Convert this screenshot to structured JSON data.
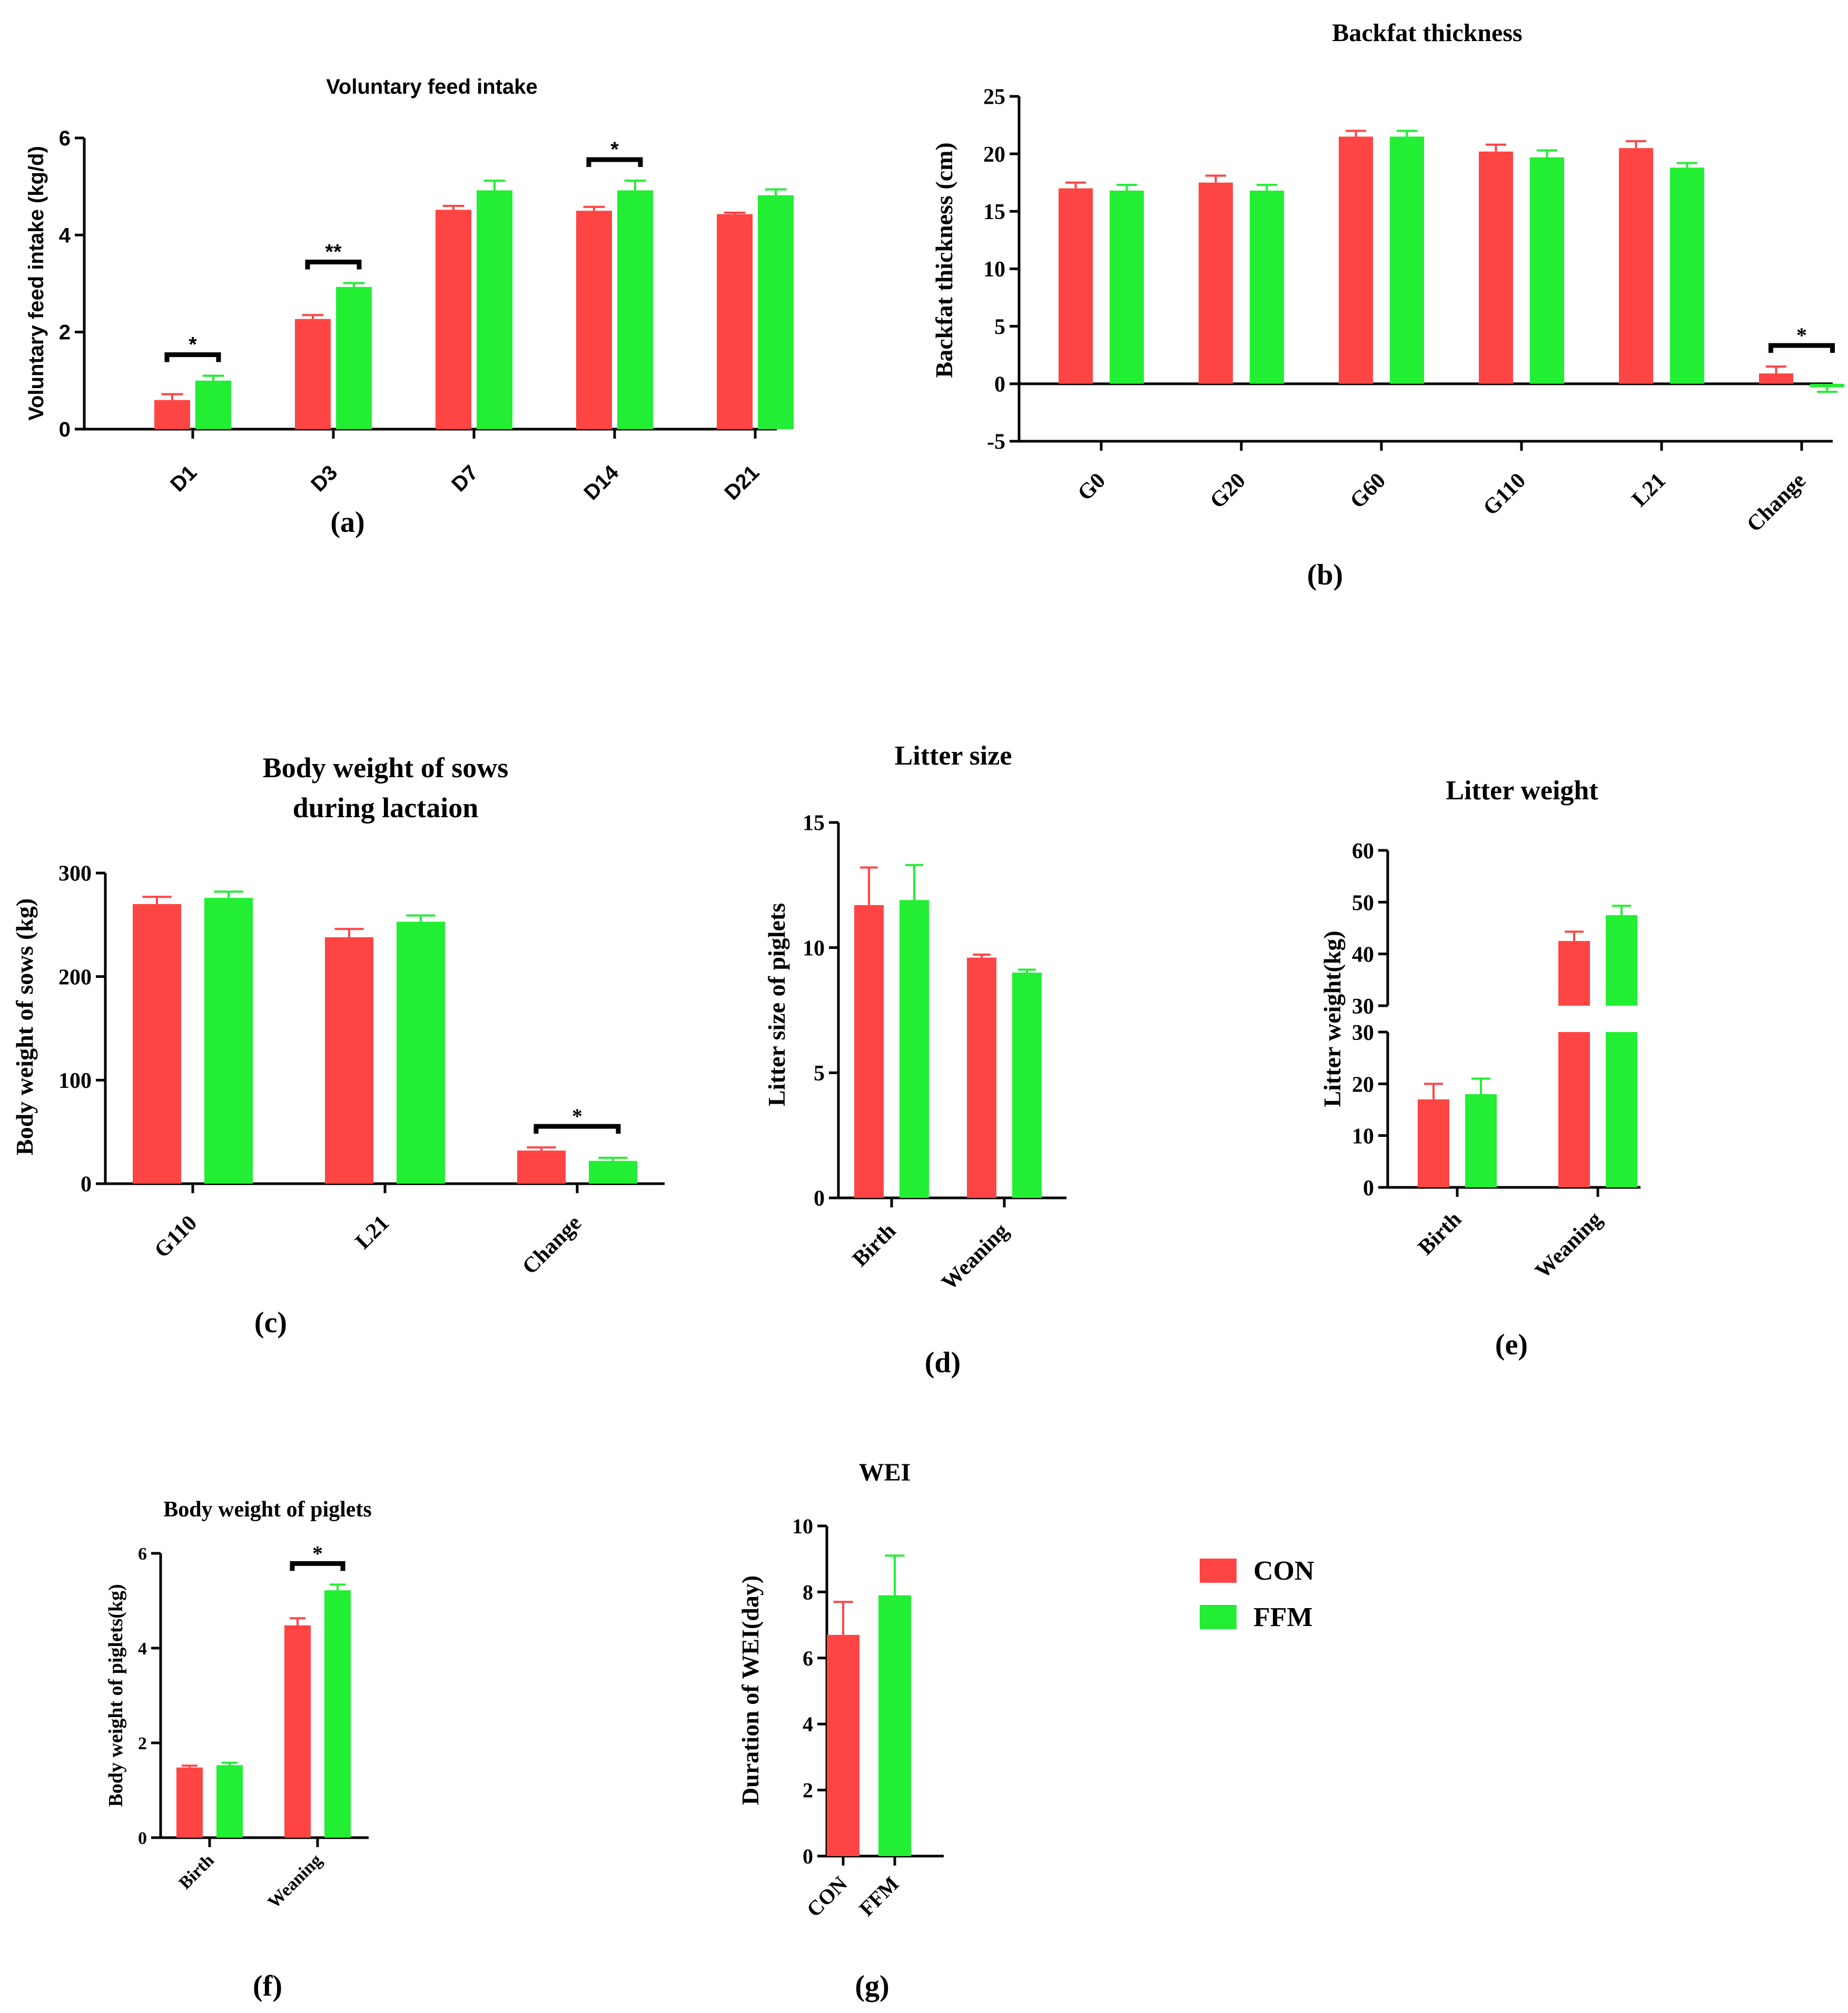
{
  "colors": {
    "CON": "#ff4444",
    "FFM": "#22ee33",
    "CON_err": "#ff4444",
    "FFM_err": "#22ee33"
  },
  "legend": {
    "items": [
      {
        "name": "CON",
        "color": "#ff4444"
      },
      {
        "name": "FFM",
        "color": "#22ee33"
      }
    ]
  },
  "chart_data": [
    {
      "id": "a",
      "panel_label": "(a)",
      "type": "bar",
      "title": "Voluntary feed intake",
      "ylabel": "Voluntary feed intake (kg/d)",
      "xlabel": "",
      "categories": [
        "D1",
        "D3",
        "D7",
        "D14",
        "D21"
      ],
      "ylim": [
        0,
        6
      ],
      "yticks": [
        0,
        2,
        4,
        6
      ],
      "ytick_labels": [
        "0",
        "2",
        "4",
        "6"
      ],
      "series": [
        {
          "name": "CON",
          "values": [
            0.6,
            2.27,
            4.52,
            4.5,
            4.43
          ],
          "errors": [
            0.12,
            0.08,
            0.08,
            0.08,
            0.03
          ]
        },
        {
          "name": "FFM",
          "values": [
            1.0,
            2.93,
            4.92,
            4.92,
            4.82
          ],
          "errors": [
            0.1,
            0.08,
            0.2,
            0.2,
            0.12
          ]
        }
      ],
      "significance": [
        {
          "category": "D1",
          "label": "*"
        },
        {
          "category": "D3",
          "label": "**"
        },
        {
          "category": "D14",
          "label": "*"
        }
      ]
    },
    {
      "id": "b",
      "panel_label": "(b)",
      "type": "bar",
      "title": "Backfat thickness",
      "ylabel": "Backfat thickness (cm)",
      "xlabel": "",
      "categories": [
        "G0",
        "G20",
        "G60",
        "G110",
        "L21",
        "Change"
      ],
      "ylim": [
        -5,
        25
      ],
      "yticks": [
        -5,
        0,
        5,
        10,
        15,
        20,
        25
      ],
      "ytick_labels": [
        "-5",
        "0",
        "5",
        "10",
        "15",
        "20",
        "25"
      ],
      "series": [
        {
          "name": "CON",
          "values": [
            17.0,
            17.5,
            21.5,
            20.2,
            20.5,
            0.9
          ],
          "errors": [
            0.5,
            0.6,
            0.5,
            0.6,
            0.6,
            0.6
          ]
        },
        {
          "name": "FFM",
          "values": [
            16.8,
            16.8,
            21.5,
            19.7,
            18.8,
            -0.3
          ],
          "errors": [
            0.5,
            0.5,
            0.5,
            0.6,
            0.4,
            0.4
          ]
        }
      ],
      "significance": [
        {
          "category": "Change",
          "label": "*"
        }
      ]
    },
    {
      "id": "c",
      "panel_label": "(c)",
      "type": "bar",
      "title": "Body weight of sows",
      "title_line2": "during lactaion",
      "ylabel": "Body weight of sows (kg)",
      "xlabel": "",
      "categories": [
        "G110",
        "L21",
        "Change"
      ],
      "ylim": [
        0,
        300
      ],
      "yticks": [
        0,
        100,
        200,
        300
      ],
      "ytick_labels": [
        "0",
        "100",
        "200",
        "300"
      ],
      "series": [
        {
          "name": "CON",
          "values": [
            270,
            238,
            32
          ],
          "errors": [
            7,
            8,
            3
          ]
        },
        {
          "name": "FFM",
          "values": [
            276,
            253,
            22
          ],
          "errors": [
            6,
            6,
            3
          ]
        }
      ],
      "significance": [
        {
          "category": "Change",
          "label": "*"
        }
      ]
    },
    {
      "id": "d",
      "panel_label": "(d)",
      "type": "bar",
      "title": "Litter size",
      "ylabel": "Litter size of piglets",
      "xlabel": "",
      "categories": [
        "Birth",
        "Weaning"
      ],
      "ylim": [
        0,
        15
      ],
      "yticks": [
        0,
        5,
        10,
        15
      ],
      "ytick_labels": [
        "0",
        "5",
        "10",
        "15"
      ],
      "series": [
        {
          "name": "CON",
          "values": [
            11.7,
            9.6
          ],
          "errors": [
            1.5,
            0.12
          ]
        },
        {
          "name": "FFM",
          "values": [
            11.9,
            9.0
          ],
          "errors": [
            1.4,
            0.12
          ]
        }
      ],
      "significance": []
    },
    {
      "id": "e",
      "panel_label": "(e)",
      "type": "bar",
      "title": "Litter  weight",
      "ylabel": "Litter weight(kg)",
      "xlabel": "",
      "categories": [
        "Birth",
        "Weaning"
      ],
      "ylim": [
        0,
        60
      ],
      "axis_break": [
        30,
        30
      ],
      "yticks_lower": [
        0,
        10,
        20,
        30
      ],
      "ytick_labels_lower": [
        "0",
        "10",
        "20",
        "30"
      ],
      "yticks_upper": [
        30,
        40,
        50,
        60
      ],
      "ytick_labels_upper": [
        "30",
        "40",
        "50",
        "60"
      ],
      "series": [
        {
          "name": "CON",
          "values": [
            17.0,
            42.5
          ],
          "errors": [
            3.0,
            1.8
          ]
        },
        {
          "name": "FFM",
          "values": [
            18.0,
            47.5
          ],
          "errors": [
            3.0,
            1.8
          ]
        }
      ],
      "significance": []
    },
    {
      "id": "f",
      "panel_label": "(f)",
      "type": "bar",
      "title": "Body weight of piglets",
      "ylabel": "Body weight of piglets(kg)",
      "xlabel": "",
      "categories": [
        "Birth",
        "Weaning"
      ],
      "ylim": [
        0,
        6
      ],
      "yticks": [
        0,
        2,
        4,
        6
      ],
      "ytick_labels": [
        "0",
        "2",
        "4",
        "6"
      ],
      "series": [
        {
          "name": "CON",
          "values": [
            1.48,
            4.48
          ],
          "errors": [
            0.04,
            0.15
          ]
        },
        {
          "name": "FFM",
          "values": [
            1.53,
            5.22
          ],
          "errors": [
            0.05,
            0.12
          ]
        }
      ],
      "significance": [
        {
          "category": "Weaning",
          "label": "*"
        }
      ]
    },
    {
      "id": "g",
      "panel_label": "(g)",
      "type": "bar",
      "title": "WEI",
      "ylabel": "Duration of WEI(day)",
      "xlabel": "",
      "categories": [
        "CON",
        "FFM"
      ],
      "ylim": [
        0,
        10
      ],
      "yticks": [
        0,
        2,
        4,
        6,
        8,
        10
      ],
      "ytick_labels": [
        "0",
        "2",
        "4",
        "6",
        "8",
        "10"
      ],
      "series": [
        {
          "name": "Duration",
          "values": [
            6.7,
            7.9
          ],
          "errors": [
            1.0,
            1.2
          ],
          "colors": [
            "#ff4444",
            "#22ee33"
          ]
        }
      ],
      "significance": []
    }
  ]
}
